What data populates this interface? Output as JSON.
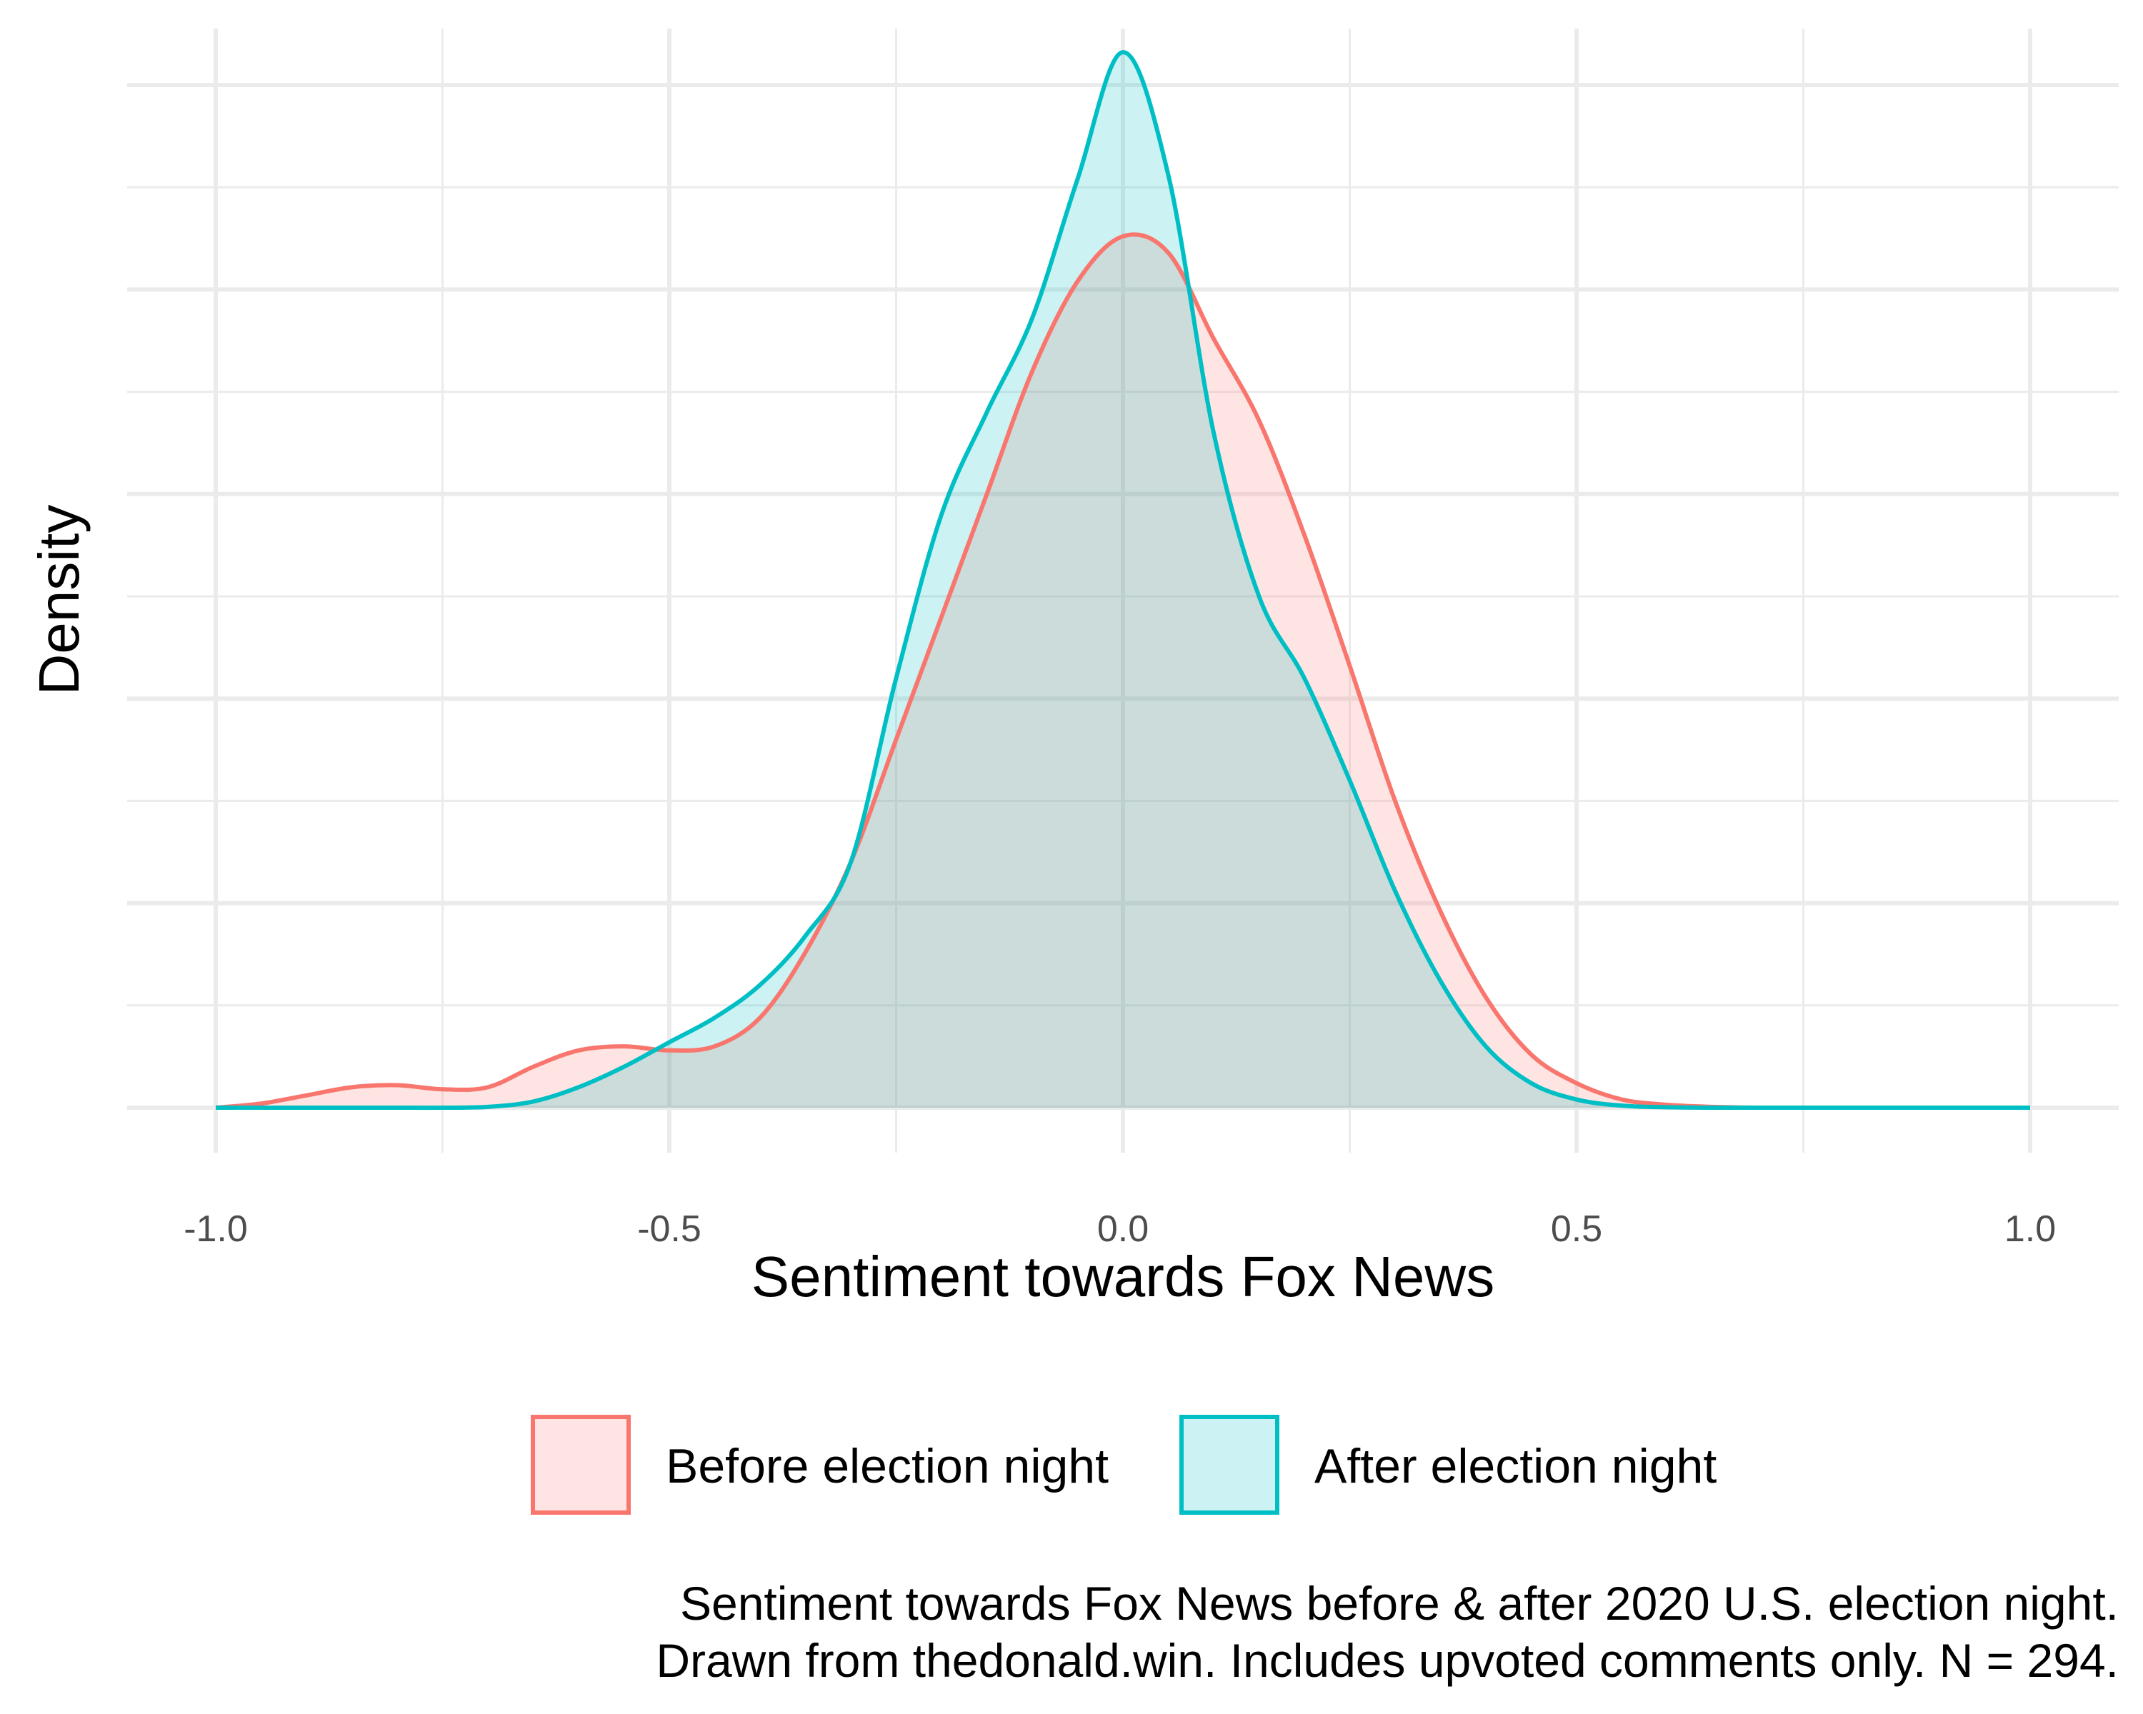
{
  "chart_data": {
    "type": "area",
    "xlabel": "Sentiment towards Fox News",
    "ylabel": "Density",
    "xlim": [
      -1.0,
      1.0
    ],
    "ylim": [
      0,
      2.5
    ],
    "x_ticks": [
      "-1.0",
      "-0.5",
      "0.0",
      "0.5",
      "1.0"
    ],
    "y_ticks_labeled": false,
    "grid": true,
    "legend_position": "bottom",
    "caption": [
      "Sentiment towards Fox News before & after 2020 U.S. election night.",
      "Drawn from thedonald.win. Includes upvoted comments only. N = 294."
    ],
    "x": [
      -1.0,
      -0.95,
      -0.9,
      -0.85,
      -0.8,
      -0.75,
      -0.7,
      -0.65,
      -0.6,
      -0.55,
      -0.5,
      -0.45,
      -0.4,
      -0.35,
      -0.3,
      -0.25,
      -0.2,
      -0.15,
      -0.1,
      -0.05,
      0.0,
      0.05,
      0.1,
      0.15,
      0.2,
      0.25,
      0.3,
      0.35,
      0.4,
      0.45,
      0.5,
      0.55,
      0.6,
      0.65,
      0.7,
      0.8,
      0.9,
      1.0
    ],
    "series": [
      {
        "name": "Before election night",
        "color": "#F8766D",
        "values": [
          0.0,
          0.01,
          0.03,
          0.05,
          0.055,
          0.045,
          0.05,
          0.1,
          0.14,
          0.15,
          0.14,
          0.15,
          0.22,
          0.38,
          0.6,
          0.9,
          1.2,
          1.5,
          1.8,
          2.02,
          2.13,
          2.09,
          1.88,
          1.68,
          1.4,
          1.08,
          0.75,
          0.48,
          0.27,
          0.13,
          0.06,
          0.02,
          0.007,
          0.002,
          0.0,
          0.0,
          0.0,
          0.0
        ]
      },
      {
        "name": "After election night",
        "color": "#00BFC4",
        "values": [
          0.0,
          0.0,
          0.0,
          0.0,
          0.0,
          0.0,
          0.002,
          0.015,
          0.05,
          0.1,
          0.16,
          0.22,
          0.3,
          0.42,
          0.6,
          1.05,
          1.45,
          1.7,
          1.93,
          2.27,
          2.58,
          2.28,
          1.65,
          1.25,
          1.05,
          0.8,
          0.53,
          0.31,
          0.15,
          0.06,
          0.02,
          0.005,
          0.001,
          0.0,
          0.0,
          0.0,
          0.0,
          0.0
        ]
      }
    ]
  }
}
